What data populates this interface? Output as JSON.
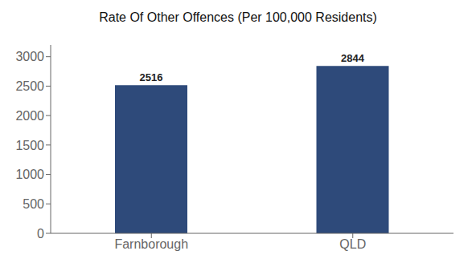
{
  "chart_data": {
    "type": "bar",
    "title": "Rate Of Other Offences (Per 100,000 Residents)",
    "categories": [
      "Farnborough",
      "QLD"
    ],
    "values": [
      2516,
      2844
    ],
    "color": "#2e4a7a",
    "ylim": [
      0,
      3200
    ],
    "yticks": [
      0,
      500,
      1000,
      1500,
      2000,
      2500,
      3000
    ],
    "grid": false,
    "data_labels": true
  }
}
